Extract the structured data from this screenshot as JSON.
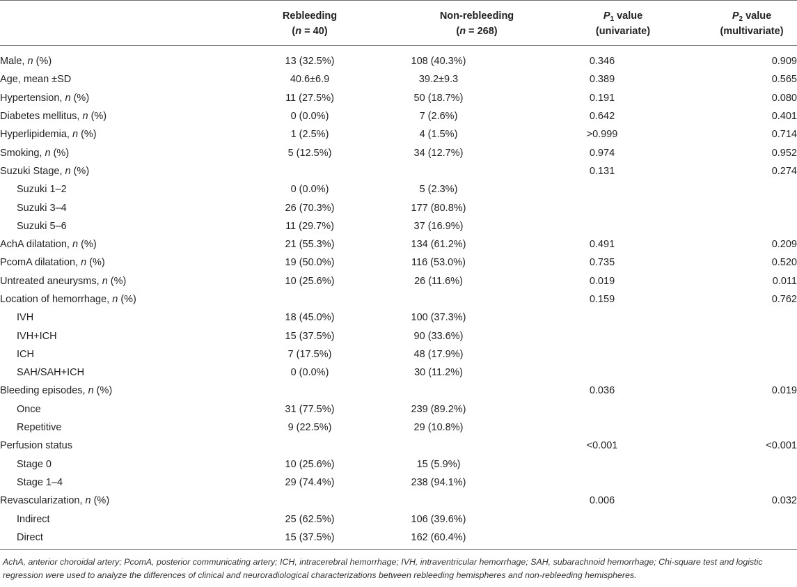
{
  "header": {
    "rebleeding": {
      "line1": "Rebleeding",
      "line2": "(n = 40)"
    },
    "non_rebleeding": {
      "line1": "Non-rebleeding",
      "line2": "(n = 268)"
    },
    "p1": {
      "letter": "P",
      "sub": "1",
      "rest": " value",
      "line2": "(univariate)"
    },
    "p2": {
      "letter": "P",
      "sub": "2",
      "rest": " value",
      "line2": "(multivariate)"
    }
  },
  "rows": [
    {
      "label": "Male, ",
      "label_em": "n",
      "label_tail": " (%)",
      "rebleeding": "13 (32.5%)",
      "non_rebleeding": "108 (40.3%)",
      "p1": "0.346",
      "p2": "0.909"
    },
    {
      "label": "Age, mean ±SD",
      "label_em": "",
      "label_tail": "",
      "rebleeding": "40.6±6.9",
      "non_rebleeding": "39.2±9.3",
      "p1": "0.389",
      "p2": "0.565"
    },
    {
      "label": "Hypertension, ",
      "label_em": "n",
      "label_tail": " (%)",
      "rebleeding": "11 (27.5%)",
      "non_rebleeding": "50 (18.7%)",
      "p1": "0.191",
      "p2": "0.080"
    },
    {
      "label": "Diabetes mellitus, ",
      "label_em": "n",
      "label_tail": " (%)",
      "rebleeding": "0 (0.0%)",
      "non_rebleeding": "7 (2.6%)",
      "p1": "0.642",
      "p2": "0.401"
    },
    {
      "label": "Hyperlipidemia, ",
      "label_em": "n",
      "label_tail": " (%)",
      "rebleeding": "1 (2.5%)",
      "non_rebleeding": "4 (1.5%)",
      "p1": ">0.999",
      "p2": "0.714"
    },
    {
      "label": "Smoking, ",
      "label_em": "n",
      "label_tail": " (%)",
      "rebleeding": "5 (12.5%)",
      "non_rebleeding": "34 (12.7%)",
      "p1": "0.974",
      "p2": "0.952"
    },
    {
      "label": "Suzuki Stage, ",
      "label_em": "n",
      "label_tail": " (%)",
      "rebleeding": "",
      "non_rebleeding": "",
      "p1": "0.131",
      "p2": "0.274"
    },
    {
      "label": "Suzuki 1–2",
      "label_em": "",
      "label_tail": "",
      "sub": true,
      "rebleeding": "0 (0.0%)",
      "non_rebleeding": "5 (2.3%)",
      "p1": "",
      "p2": ""
    },
    {
      "label": "Suzuki 3–4",
      "label_em": "",
      "label_tail": "",
      "sub": true,
      "rebleeding": "26 (70.3%)",
      "non_rebleeding": "177 (80.8%)",
      "p1": "",
      "p2": ""
    },
    {
      "label": "Suzuki 5–6",
      "label_em": "",
      "label_tail": "",
      "sub": true,
      "rebleeding": "11 (29.7%)",
      "non_rebleeding": "37 (16.9%)",
      "p1": "",
      "p2": ""
    },
    {
      "label": "AchA dilatation, ",
      "label_em": "n",
      "label_tail": " (%)",
      "rebleeding": "21 (55.3%)",
      "non_rebleeding": "134 (61.2%)",
      "p1": "0.491",
      "p2": "0.209"
    },
    {
      "label": "PcomA dilatation, ",
      "label_em": "n",
      "label_tail": " (%)",
      "rebleeding": "19 (50.0%)",
      "non_rebleeding": "116 (53.0%)",
      "p1": "0.735",
      "p2": "0.520"
    },
    {
      "label": "Untreated aneurysms, ",
      "label_em": "n",
      "label_tail": " (%)",
      "rebleeding": "10 (25.6%)",
      "non_rebleeding": "26 (11.6%)",
      "p1": "0.019",
      "p2": "0.011"
    },
    {
      "label": "Location of hemorrhage, ",
      "label_em": "n",
      "label_tail": " (%)",
      "rebleeding": "",
      "non_rebleeding": "",
      "p1": "0.159",
      "p2": "0.762"
    },
    {
      "label": "IVH",
      "label_em": "",
      "label_tail": "",
      "sub": true,
      "rebleeding": "18 (45.0%)",
      "non_rebleeding": "100 (37.3%)",
      "p1": "",
      "p2": ""
    },
    {
      "label": "IVH+ICH",
      "label_em": "",
      "label_tail": "",
      "sub": true,
      "rebleeding": "15 (37.5%)",
      "non_rebleeding": "90 (33.6%)",
      "p1": "",
      "p2": ""
    },
    {
      "label": "ICH",
      "label_em": "",
      "label_tail": "",
      "sub": true,
      "rebleeding": "7 (17.5%)",
      "non_rebleeding": "48 (17.9%)",
      "p1": "",
      "p2": ""
    },
    {
      "label": "SAH/SAH+ICH",
      "label_em": "",
      "label_tail": "",
      "sub": true,
      "rebleeding": "0 (0.0%)",
      "non_rebleeding": "30 (11.2%)",
      "p1": "",
      "p2": ""
    },
    {
      "label": "Bleeding episodes, ",
      "label_em": "n",
      "label_tail": " (%)",
      "rebleeding": "",
      "non_rebleeding": "",
      "p1": "0.036",
      "p2": "0.019"
    },
    {
      "label": "Once",
      "label_em": "",
      "label_tail": "",
      "sub": true,
      "rebleeding": "31 (77.5%)",
      "non_rebleeding": "239 (89.2%)",
      "p1": "",
      "p2": ""
    },
    {
      "label": "Repetitive",
      "label_em": "",
      "label_tail": "",
      "sub": true,
      "rebleeding": "9 (22.5%)",
      "non_rebleeding": "29 (10.8%)",
      "p1": "",
      "p2": ""
    },
    {
      "label": "Perfusion status",
      "label_em": "",
      "label_tail": "",
      "rebleeding": "",
      "non_rebleeding": "",
      "p1": "<0.001",
      "p2": "<0.001"
    },
    {
      "label": "Stage 0",
      "label_em": "",
      "label_tail": "",
      "sub": true,
      "rebleeding": "10 (25.6%)",
      "non_rebleeding": "15 (5.9%)",
      "p1": "",
      "p2": ""
    },
    {
      "label": "Stage 1–4",
      "label_em": "",
      "label_tail": "",
      "sub": true,
      "rebleeding": "29 (74.4%)",
      "non_rebleeding": "238 (94.1%)",
      "p1": "",
      "p2": ""
    },
    {
      "label": "Revascularization, ",
      "label_em": "n",
      "label_tail": " (%)",
      "rebleeding": "",
      "non_rebleeding": "",
      "p1": "0.006",
      "p2": "0.032"
    },
    {
      "label": "Indirect",
      "label_em": "",
      "label_tail": "",
      "sub": true,
      "rebleeding": "25 (62.5%)",
      "non_rebleeding": "106 (39.6%)",
      "p1": "",
      "p2": ""
    },
    {
      "label": "Direct",
      "label_em": "",
      "label_tail": "",
      "sub": true,
      "rebleeding": "15 (37.5%)",
      "non_rebleeding": "162 (60.4%)",
      "p1": "",
      "p2": ""
    }
  ],
  "footnote": "AchA, anterior choroidal artery; PcomA, posterior communicating artery; ICH, intracerebral hemorrhage; IVH, intraventricular hemorrhage; SAH, subarachnoid hemorrhage; Chi-square test and logistic regression were used to analyze the differences of clinical and neuroradiological characterizations between rebleeding hemispheres and non-rebleeding hemispheres."
}
